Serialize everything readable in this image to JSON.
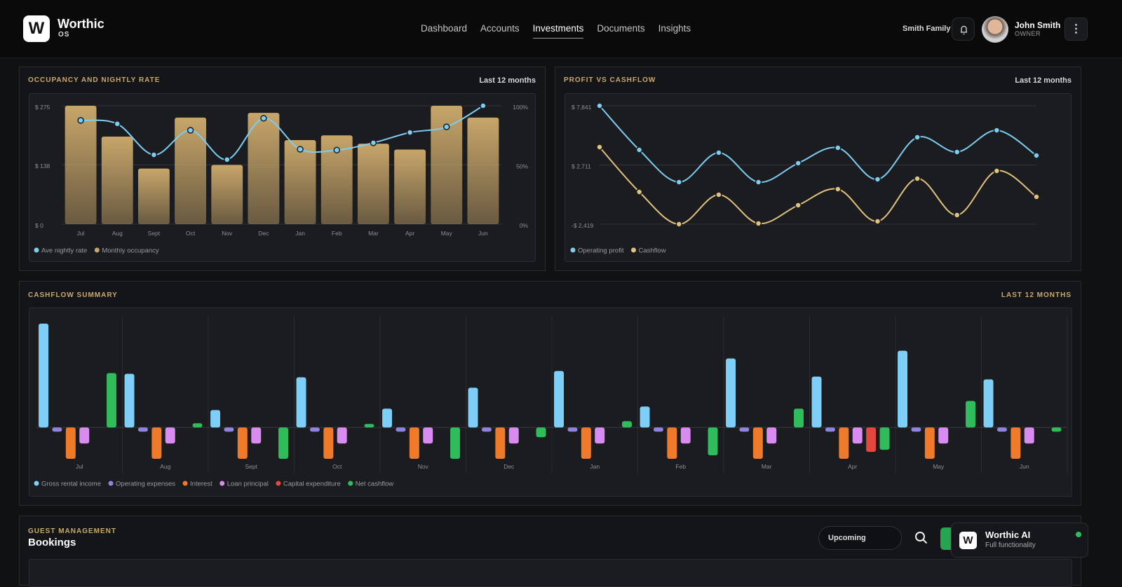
{
  "header": {
    "logo": "W",
    "brand": "Worthic",
    "sub": "OS",
    "nav": [
      "Dashboard",
      "Accounts",
      "Investments",
      "Documents",
      "Insights"
    ],
    "active_nav": 2,
    "family": "Smith Family",
    "user": "John Smith",
    "role": "OWNER"
  },
  "chart_data": [
    {
      "type": "combo",
      "title": "OCCUPANCY AND NIGHTLY RATE",
      "subtitle": "Last 12 months",
      "categories": [
        "Jul",
        "Aug",
        "Sept",
        "Oct",
        "Nov",
        "Dec",
        "Jan",
        "Feb",
        "Mar",
        "Apr",
        "May",
        "Jun"
      ],
      "series": [
        {
          "name": "Ave nightly rate",
          "color": "#7dcdf2",
          "type": "line",
          "values": [
            241,
            233,
            161,
            218,
            150,
            246,
            174,
            172,
            189,
            213,
            226,
            275
          ]
        },
        {
          "name": "Monthly occupancy",
          "color": "#c8a66a",
          "type": "bar",
          "axis": "y2",
          "values": [
            100,
            74,
            47,
            90,
            50,
            94,
            71,
            75,
            68,
            63,
            100,
            90
          ]
        }
      ],
      "ylim": [
        0,
        275
      ],
      "yticks": [
        {
          "value": 0,
          "label": "$ 0"
        },
        {
          "value": 138,
          "label": "$ 138"
        },
        {
          "value": 275,
          "label": "$ 275"
        }
      ],
      "y2lim": [
        0,
        100
      ],
      "y2ticks": [
        {
          "value": 0,
          "label": "0%"
        },
        {
          "value": 50,
          "label": "50%"
        },
        {
          "value": 100,
          "label": "100%"
        }
      ],
      "grid": true,
      "bar_gradient": true
    },
    {
      "type": "line",
      "title": "PROFIT VS CASHFLOW",
      "subtitle": "Last 12 months",
      "series": [
        {
          "name": "Operating profit",
          "color": "#7dcdf2",
          "values": [
            7841,
            4016,
            1224,
            3773,
            1224,
            2863,
            4198,
            1466,
            5109,
            3834,
            5716,
            3531
          ]
        },
        {
          "name": "Cashflow",
          "color": "#e2c27f",
          "values": [
            4259,
            374,
            -2419,
            131,
            -2359,
            -780,
            617,
            -2176,
            1527,
            -1630,
            2195,
            -51
          ]
        }
      ],
      "ylim": [
        -2419,
        7841
      ],
      "yticks": [
        {
          "value": -2419,
          "label": "-$ 2,419"
        },
        {
          "value": 2711,
          "label": "$ 2,711"
        },
        {
          "value": 7841,
          "label": "$ 7,841"
        }
      ],
      "grid": true
    },
    {
      "type": "bar",
      "title": "CASHFLOW SUMMARY",
      "subtitle": "LAST 12 MONTHS",
      "categories": [
        "Jul",
        "Aug",
        "Sept",
        "Oct",
        "Nov",
        "Dec",
        "Jan",
        "Feb",
        "Mar",
        "Apr",
        "May",
        "Jun"
      ],
      "series": [
        {
          "name": "Gross rental income",
          "color": "#7dcff7",
          "values": [
            149,
            77,
            25,
            72,
            27,
            57,
            81,
            30,
            99,
            73,
            110,
            69
          ]
        },
        {
          "name": "Operating expenses",
          "color": "#8f84e0",
          "values": [
            -6,
            -6,
            -6,
            -6,
            -6,
            -6,
            -6,
            -6,
            -6,
            -6,
            -6,
            -6
          ]
        },
        {
          "name": "Interest",
          "color": "#ee7a2a",
          "values": [
            -45,
            -45,
            -45,
            -45,
            -45,
            -45,
            -45,
            -45,
            -45,
            -45,
            -45,
            -45
          ]
        },
        {
          "name": "Loan principal",
          "color": "#d88cef",
          "values": [
            -23,
            -23,
            -23,
            -23,
            -23,
            -23,
            -23,
            -23,
            -23,
            -23,
            -23,
            -23
          ]
        },
        {
          "name": "Capital expenditure",
          "color": "#e3473f",
          "values": [
            0,
            0,
            0,
            0,
            0,
            0,
            0,
            0,
            0,
            -35,
            0,
            0
          ]
        },
        {
          "name": "Net cashflow",
          "color": "#2fbd5b",
          "values": [
            78,
            6,
            -45,
            5,
            -45,
            -14,
            9,
            -40,
            27,
            -32,
            38,
            -6
          ]
        }
      ],
      "ylim": [
        -50,
        160
      ]
    }
  ],
  "bookings": {
    "eyebrow": "GUEST MANAGEMENT",
    "title": "Bookings",
    "filter": "Upcoming"
  },
  "assistant": {
    "logo": "W",
    "title": "Worthic AI",
    "subtitle": "Full functionality"
  }
}
